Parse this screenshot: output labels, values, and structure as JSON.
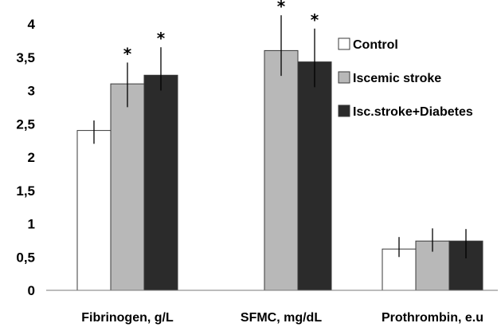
{
  "chart_data": {
    "type": "bar",
    "categories": [
      "Fibrinogen, g/L",
      "SFMC, mg/dL",
      "Prothrombin,  e.u"
    ],
    "ylim": [
      0,
      4
    ],
    "yticks": [
      "0",
      "0,5",
      "1",
      "1,5",
      "2",
      "2,5",
      "3",
      "3,5",
      "4"
    ],
    "ytick_values": [
      0,
      0.5,
      1,
      1.5,
      2,
      2.5,
      3,
      3.5,
      4
    ],
    "grid": false,
    "legend_position": "right",
    "series": [
      {
        "name": "Control",
        "color": "#ffffff",
        "values": [
          2.4,
          null,
          0.62
        ],
        "error_low": [
          2.2,
          null,
          0.5
        ],
        "error_high": [
          2.55,
          null,
          0.8
        ],
        "significance": [
          "",
          "",
          ""
        ]
      },
      {
        "name": "Iscemic stroke",
        "color": "#b8b8b8",
        "values": [
          3.1,
          3.6,
          0.74
        ],
        "error_low": [
          2.75,
          3.22,
          0.58
        ],
        "error_high": [
          3.42,
          4.13,
          0.93
        ],
        "significance": [
          "*",
          "*",
          ""
        ]
      },
      {
        "name": "Isc.stroke+Diabetes",
        "color": "#2b2b2b",
        "values": [
          3.23,
          3.43,
          0.74
        ],
        "error_low": [
          3.0,
          3.05,
          0.48
        ],
        "error_high": [
          3.65,
          3.93,
          0.92
        ],
        "significance": [
          "*",
          "*",
          ""
        ]
      }
    ]
  }
}
